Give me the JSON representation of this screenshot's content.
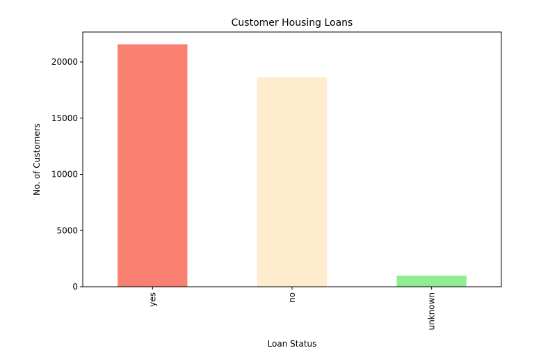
{
  "chart_data": {
    "type": "bar",
    "title": "Customer Housing Loans",
    "xlabel": "Loan Status",
    "ylabel": "No. of Customers",
    "categories": [
      "yes",
      "no",
      "unknown"
    ],
    "values": [
      21576,
      18622,
      990
    ],
    "colors": [
      "#fa8072",
      "#ffebcd",
      "#90ee90"
    ],
    "ylim": [
      0,
      22665
    ],
    "yticks": [
      0,
      5000,
      10000,
      15000,
      20000
    ],
    "ytick_labels": [
      "0",
      "5000",
      "10000",
      "15000",
      "20000"
    ],
    "xtick_rotation": "vertical",
    "grid": false,
    "legend": "none"
  }
}
